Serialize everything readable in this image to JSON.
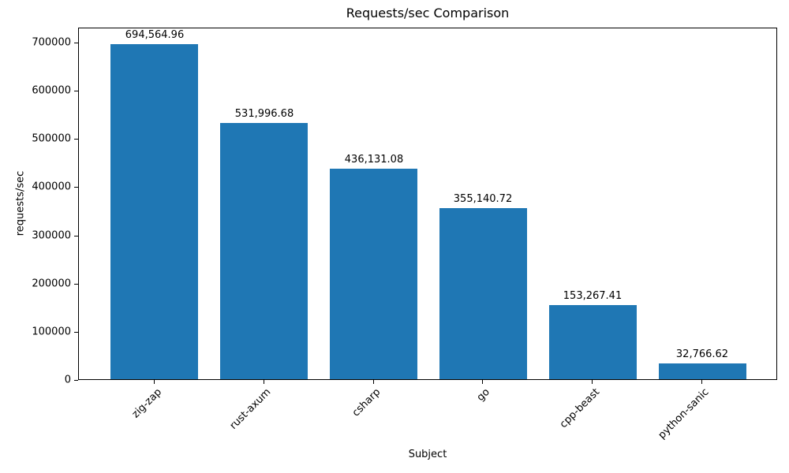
{
  "figure": {
    "background_color": "#ffffff",
    "text_color": "#000000"
  },
  "chart_data": {
    "type": "bar",
    "title": "Requests/sec Comparison",
    "xlabel": "Subject",
    "ylabel": "requests/sec",
    "categories": [
      "zig-zap",
      "rust-axum",
      "csharp",
      "go",
      "cpp-beast",
      "python-sanic"
    ],
    "values": [
      694564.96,
      531996.68,
      436131.08,
      355140.72,
      153267.41,
      32766.62
    ],
    "bar_value_labels": [
      "694,564.96",
      "531,996.68",
      "436,131.08",
      "355,140.72",
      "153,267.41",
      "32,766.62"
    ],
    "yticks": [
      0,
      100000,
      200000,
      300000,
      400000,
      500000,
      600000,
      700000
    ],
    "ytick_labels": [
      "0",
      "100000",
      "200000",
      "300000",
      "400000",
      "500000",
      "600000",
      "700000"
    ],
    "ylim": [
      0,
      731000
    ],
    "bar_color": "#1f77b4",
    "grid": false,
    "legend": "none",
    "xtick_label_rotation_deg": 45
  }
}
